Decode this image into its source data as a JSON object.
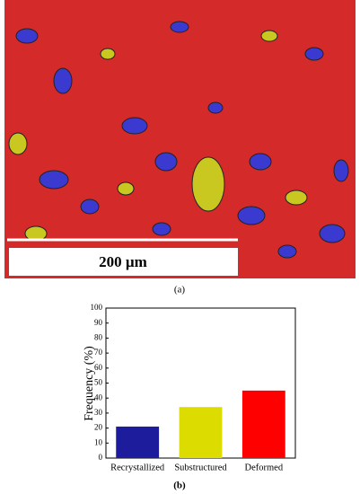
{
  "figure_a": {
    "scale_bar": "200 µm",
    "label": "(a)"
  },
  "label_b": "(b)",
  "chart_data": {
    "type": "bar",
    "ylabel": "Frequency (%)",
    "categories": [
      "Recrystallized",
      "Substructured",
      "Deformed"
    ],
    "values": [
      21,
      34,
      45
    ],
    "colors": [
      "#1c1c9c",
      "#dcdc00",
      "#ff0000"
    ],
    "ylim": [
      0,
      100
    ],
    "yticks": [
      0,
      10,
      20,
      30,
      40,
      50,
      60,
      70,
      80,
      90,
      100
    ],
    "grid": false
  }
}
